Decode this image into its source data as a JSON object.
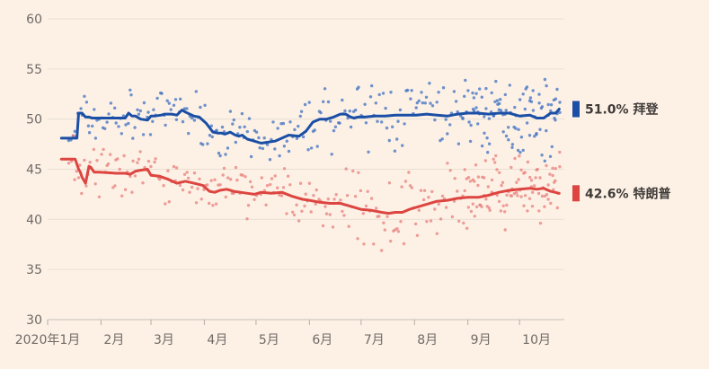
{
  "chart_data": {
    "type": "line",
    "title": "",
    "xlabel": "",
    "ylabel": "",
    "ylim": [
      30,
      60
    ],
    "yticks": [
      30,
      35,
      40,
      45,
      50,
      55,
      60
    ],
    "grid": true,
    "x_unit": "days since 2020-01-01",
    "xlim": [
      0,
      300
    ],
    "xticks": [
      {
        "label": "2020年1月",
        "x": 0
      },
      {
        "label": "2月",
        "x": 31
      },
      {
        "label": "3月",
        "x": 60
      },
      {
        "label": "4月",
        "x": 91
      },
      {
        "label": "5月",
        "x": 121
      },
      {
        "label": "6月",
        "x": 152
      },
      {
        "label": "7月",
        "x": 182
      },
      {
        "label": "8月",
        "x": 213
      },
      {
        "label": "9月",
        "x": 244
      },
      {
        "label": "10月",
        "x": 274
      }
    ],
    "series": [
      {
        "name": "拜登",
        "end_label": "51.0% 拜登",
        "color": "#1a4fa5",
        "dot_color": "#3e6fc0",
        "x": [
          8,
          17,
          18,
          20,
          22,
          24,
          26,
          30,
          40,
          45,
          47,
          49,
          51,
          54,
          58,
          60,
          62,
          66,
          68,
          72,
          75,
          78,
          80,
          85,
          88,
          92,
          96,
          99,
          101,
          103,
          106,
          109,
          111,
          113,
          116,
          118,
          120,
          124,
          128,
          132,
          136,
          140,
          146,
          150,
          154,
          158,
          162,
          166,
          170,
          173,
          176,
          178,
          180,
          184,
          190,
          196,
          202,
          208,
          214,
          220,
          226,
          232,
          238,
          244,
          250,
          256,
          262,
          268,
          274,
          280,
          284,
          288,
          292,
          295,
          297
        ],
        "values": [
          48.1,
          48.1,
          50.6,
          50.6,
          50.2,
          50.2,
          50.1,
          50.1,
          50.1,
          50.1,
          50.6,
          50.3,
          50.3,
          50.0,
          49.9,
          50.3,
          50.3,
          50.4,
          50.5,
          50.5,
          50.4,
          50.9,
          50.7,
          50.3,
          50.2,
          49.6,
          48.7,
          48.6,
          48.6,
          48.5,
          48.7,
          48.4,
          48.3,
          48.4,
          48.0,
          47.9,
          47.8,
          47.6,
          47.7,
          47.8,
          48.1,
          48.4,
          48.3,
          48.8,
          49.7,
          50.0,
          50.0,
          50.2,
          50.5,
          50.5,
          50.2,
          50.1,
          50.2,
          50.2,
          50.3,
          50.3,
          50.4,
          50.4,
          50.4,
          50.5,
          50.4,
          50.3,
          50.5,
          50.6,
          50.6,
          50.5,
          50.6,
          50.6,
          50.3,
          50.4,
          50.1,
          50.1,
          50.6,
          50.6,
          51.0
        ]
      },
      {
        "name": "特朗普",
        "end_label": "42.6% 特朗普",
        "color": "#dd4540",
        "dot_color": "#e77f7b",
        "x": [
          8,
          16,
          18,
          19,
          20,
          22,
          24,
          25,
          27,
          30,
          40,
          45,
          48,
          51,
          54,
          58,
          60,
          65,
          70,
          75,
          80,
          85,
          90,
          94,
          97,
          100,
          104,
          108,
          112,
          116,
          120,
          124,
          130,
          136,
          142,
          148,
          152,
          158,
          164,
          170,
          176,
          182,
          188,
          194,
          198,
          202,
          206,
          210,
          214,
          220,
          226,
          232,
          238,
          244,
          250,
          256,
          262,
          268,
          274,
          280,
          284,
          288,
          292,
          297
        ],
        "values": [
          46.0,
          46.0,
          45.0,
          44.7,
          44.2,
          43.6,
          45.3,
          45.2,
          44.7,
          44.7,
          44.6,
          44.6,
          44.5,
          44.8,
          44.9,
          45.0,
          44.4,
          44.3,
          44.0,
          43.6,
          43.8,
          43.6,
          43.4,
          42.8,
          42.7,
          42.9,
          43.0,
          42.8,
          42.7,
          42.6,
          42.5,
          42.7,
          42.6,
          42.7,
          42.3,
          42.0,
          41.9,
          41.7,
          41.6,
          41.6,
          41.3,
          41.0,
          40.9,
          40.7,
          40.6,
          40.7,
          40.7,
          41.0,
          41.2,
          41.5,
          41.8,
          41.9,
          42.1,
          42.2,
          42.2,
          42.4,
          42.7,
          42.9,
          43.0,
          43.1,
          43.0,
          43.1,
          42.8,
          42.6
        ]
      }
    ]
  }
}
